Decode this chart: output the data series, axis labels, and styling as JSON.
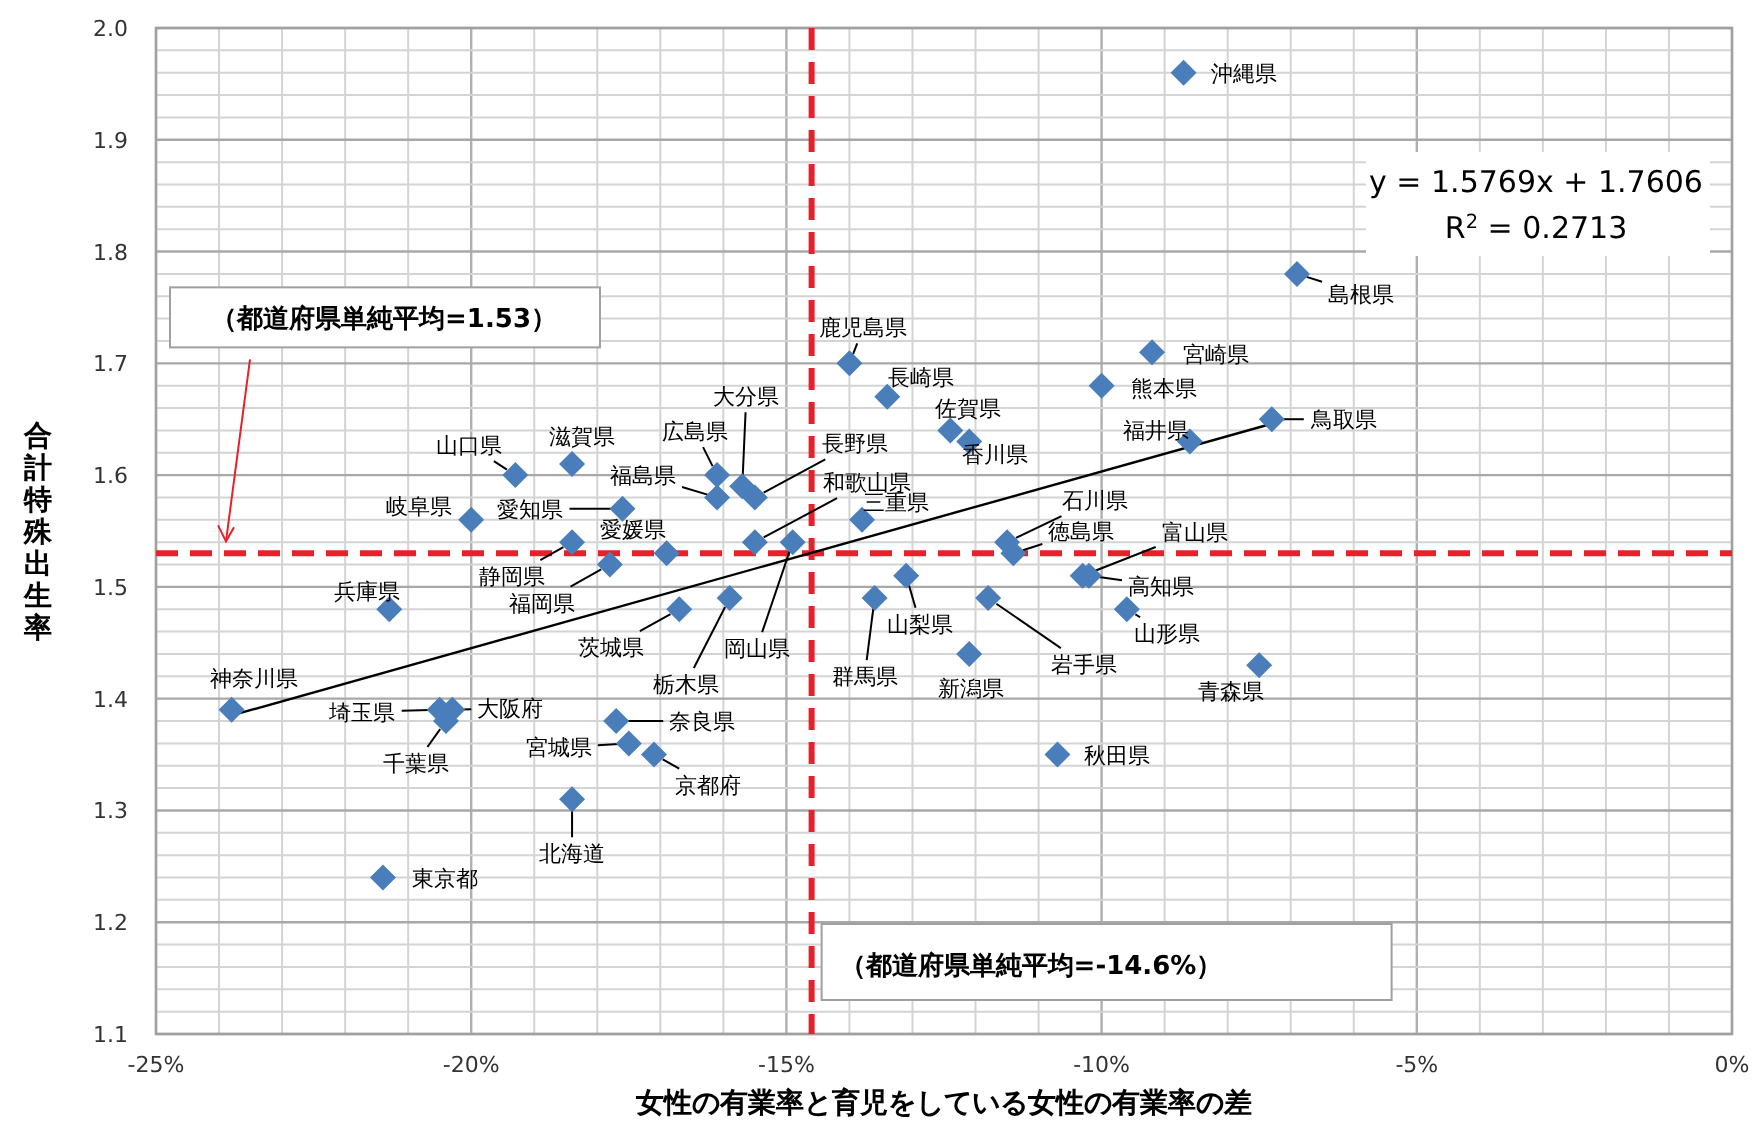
{
  "chart_data": {
    "type": "scatter",
    "xlabel": "女性の有業率と育児をしている女性の有業率の差",
    "ylabel": "合計特殊出生率",
    "xlim": [
      -25,
      0
    ],
    "ylim": [
      1.1,
      2.0
    ],
    "xticks": [
      {
        "value": -25,
        "label": "-25%"
      },
      {
        "value": -20,
        "label": "-20%"
      },
      {
        "value": -15,
        "label": "-15%"
      },
      {
        "value": -10,
        "label": "-10%"
      },
      {
        "value": -5,
        "label": "-5%"
      },
      {
        "value": 0,
        "label": "0%"
      }
    ],
    "yticks": [
      1.1,
      1.2,
      1.3,
      1.4,
      1.5,
      1.6,
      1.7,
      1.8,
      1.9,
      {
        "value": 2.0,
        "label": "2.0"
      }
    ],
    "grid": true,
    "series": [
      {
        "marker": "diamond",
        "color": "#4a7ebb",
        "x": [
          -8.7,
          -6.9,
          -9.2,
          -10.0,
          -8.6,
          -7.3,
          -14.0,
          -13.4,
          -12.4,
          -12.1,
          -13.8,
          -11.5,
          -11.4,
          -10.3,
          -10.2,
          -13.1,
          -13.6,
          -11.8,
          -9.6,
          -12.1,
          -7.5,
          -10.7,
          -19.3,
          -18.4,
          -16.1,
          -16.1,
          -15.7,
          -15.5,
          -15.5,
          -14.9,
          -17.6,
          -20.0,
          -18.4,
          -16.9,
          -17.8,
          -21.3,
          -16.7,
          -15.9,
          -23.8,
          -20.5,
          -20.3,
          -20.4,
          -17.7,
          -17.5,
          -17.1,
          -18.4,
          -21.4
        ],
        "values": [
          1.96,
          1.78,
          1.71,
          1.68,
          1.63,
          1.65,
          1.7,
          1.67,
          1.64,
          1.63,
          1.56,
          1.54,
          1.53,
          1.51,
          1.51,
          1.51,
          1.49,
          1.49,
          1.48,
          1.44,
          1.43,
          1.35,
          1.6,
          1.61,
          1.6,
          1.58,
          1.59,
          1.58,
          1.54,
          1.54,
          1.57,
          1.56,
          1.54,
          1.53,
          1.52,
          1.48,
          1.48,
          1.49,
          1.39,
          1.39,
          1.39,
          1.38,
          1.38,
          1.36,
          1.35,
          1.31,
          1.24
        ]
      },
      {
        "type": "line",
        "color": "#000000",
        "x": [
          -23.8,
          -7.3
        ],
        "values": [
          1.385,
          1.646
        ]
      }
    ],
    "ref_lines": [
      {
        "axis": "y",
        "value": 1.53,
        "label": "（都道府県単純平均=1.53）",
        "color": "#e8202a",
        "line_style": "dashed"
      },
      {
        "axis": "x",
        "value": -14.6,
        "label": "（都道府県単純平均=-14.6%）",
        "color": "#e8202a",
        "line_style": "dashed"
      }
    ],
    "annotations": [
      "y = 1.5769x + 1.7606",
      "R$^{2}$ = 0.2713",
      {
        "text": "沖縄県",
        "x": -8.7,
        "y": 1.96
      },
      {
        "text": "島根県",
        "x": -6.9,
        "y": 1.78
      },
      {
        "text": "宮崎県",
        "x": -9.2,
        "y": 1.71
      },
      {
        "text": "熊本県",
        "x": -10.0,
        "y": 1.68
      },
      {
        "text": "福井県",
        "x": -8.6,
        "y": 1.63
      },
      {
        "text": "鳥取県",
        "x": -7.3,
        "y": 1.65
      },
      {
        "text": "鹿児島県",
        "x": -14.0,
        "y": 1.7
      },
      {
        "text": "長崎県",
        "x": -13.4,
        "y": 1.67
      },
      {
        "text": "佐賀県",
        "x": -12.4,
        "y": 1.64
      },
      {
        "text": "香川県",
        "x": -12.1,
        "y": 1.63
      },
      {
        "text": "三重県",
        "x": -13.8,
        "y": 1.56
      },
      {
        "text": "石川県",
        "x": -11.5,
        "y": 1.54
      },
      {
        "text": "徳島県",
        "x": -11.4,
        "y": 1.53
      },
      {
        "text": "富山県",
        "x": -10.3,
        "y": 1.51
      },
      {
        "text": "高知県",
        "x": -10.2,
        "y": 1.51
      },
      {
        "text": "山梨県",
        "x": -13.1,
        "y": 1.51
      },
      {
        "text": "群馬県",
        "x": -13.6,
        "y": 1.49
      },
      {
        "text": "岩手県",
        "x": -11.8,
        "y": 1.49
      },
      {
        "text": "山形県",
        "x": -9.6,
        "y": 1.48
      },
      {
        "text": "新潟県",
        "x": -12.1,
        "y": 1.44
      },
      {
        "text": "青森県",
        "x": -7.5,
        "y": 1.43
      },
      {
        "text": "秋田県",
        "x": -10.7,
        "y": 1.35
      },
      {
        "text": "山口県",
        "x": -19.3,
        "y": 1.6
      },
      {
        "text": "滋賀県",
        "x": -18.4,
        "y": 1.61
      },
      {
        "text": "広島県",
        "x": -16.1,
        "y": 1.6
      },
      {
        "text": "福島県",
        "x": -16.1,
        "y": 1.58
      },
      {
        "text": "大分県",
        "x": -15.7,
        "y": 1.59
      },
      {
        "text": "長野県",
        "x": -15.5,
        "y": 1.58
      },
      {
        "text": "和歌山県",
        "x": -15.5,
        "y": 1.54
      },
      {
        "text": "岡山県",
        "x": -14.9,
        "y": 1.54
      },
      {
        "text": "愛知県",
        "x": -17.6,
        "y": 1.57
      },
      {
        "text": "岐阜県",
        "x": -20.0,
        "y": 1.56
      },
      {
        "text": "静岡県",
        "x": -18.4,
        "y": 1.54
      },
      {
        "text": "愛媛県",
        "x": -16.9,
        "y": 1.53
      },
      {
        "text": "福岡県",
        "x": -17.8,
        "y": 1.52
      },
      {
        "text": "兵庫県",
        "x": -21.3,
        "y": 1.48
      },
      {
        "text": "茨城県",
        "x": -16.7,
        "y": 1.48
      },
      {
        "text": "栃木県",
        "x": -15.9,
        "y": 1.49
      },
      {
        "text": "神奈川県",
        "x": -23.8,
        "y": 1.39
      },
      {
        "text": "埼玉県",
        "x": -20.5,
        "y": 1.39
      },
      {
        "text": "大阪府",
        "x": -20.3,
        "y": 1.39
      },
      {
        "text": "千葉県",
        "x": -20.4,
        "y": 1.38
      },
      {
        "text": "奈良県",
        "x": -17.7,
        "y": 1.38
      },
      {
        "text": "宮城県",
        "x": -17.5,
        "y": 1.36
      },
      {
        "text": "京都府",
        "x": -17.1,
        "y": 1.35
      },
      {
        "text": "北海道",
        "x": -18.4,
        "y": 1.31
      },
      {
        "text": "東京都",
        "x": -21.4,
        "y": 1.24
      }
    ]
  }
}
